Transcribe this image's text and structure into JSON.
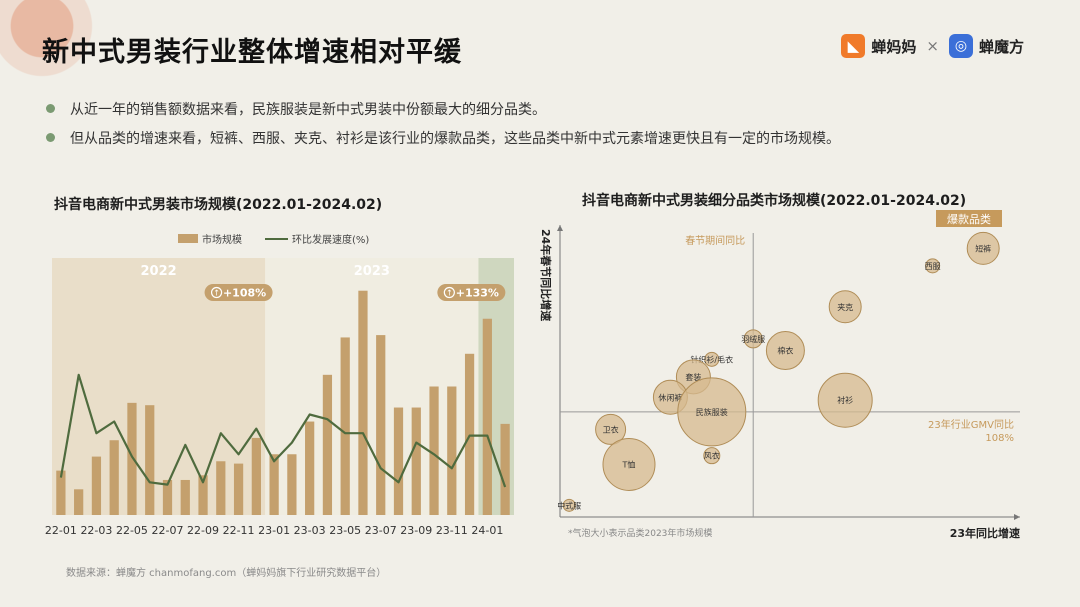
{
  "title": "新中式男装行业整体增速相对平缓",
  "brand": {
    "name1": "蝉妈妈",
    "times": "×",
    "name2": "蝉魔方"
  },
  "bullets": [
    "从近一年的销售额数据来看，民族服装是新中式男装中份额最大的细分品类。",
    "但从品类的增速来看，短裤、西服、夹克、衬衫是该行业的爆款品类，这些品类中新中式元素增速更快且有一定的市场规模。"
  ],
  "source": "数据来源：蝉魔方 chanmofang.com（蝉妈妈旗下行业研究数据平台）",
  "colors": {
    "bar": "#c4a06d",
    "line": "#4f6b3e",
    "bubble": "#d5b98f",
    "bubble_stroke": "#b08d57",
    "accent": "#c69a5c",
    "band2022": "#e7dbc3",
    "band2023": "#f0ece0",
    "band2024": "#c9d2b7"
  },
  "chart_data": [
    {
      "type": "bar+line",
      "title": "抖音电商新中式男装市场规模(2022.01-2024.02)",
      "legend": {
        "bar": "市场规模",
        "line": "环比发展速度(%)"
      },
      "years": [
        "2022",
        "2023"
      ],
      "badges": [
        "+108%",
        "+133%"
      ],
      "months": [
        "22-01",
        "22-02",
        "22-03",
        "22-04",
        "22-05",
        "22-06",
        "22-07",
        "22-08",
        "22-09",
        "22-10",
        "22-11",
        "22-12",
        "23-01",
        "23-02",
        "23-03",
        "23-04",
        "23-05",
        "23-06",
        "23-07",
        "23-08",
        "23-09",
        "23-10",
        "23-11",
        "23-12",
        "24-01",
        "24-02"
      ],
      "tick_labels": [
        "22-01",
        "22-03",
        "22-05",
        "22-07",
        "22-09",
        "22-11",
        "23-01",
        "23-03",
        "23-05",
        "23-07",
        "23-09",
        "23-11",
        "24-01"
      ],
      "bar_values": [
        19,
        11,
        25,
        32,
        48,
        47,
        15,
        15,
        17,
        23,
        22,
        33,
        26,
        26,
        40,
        60,
        76,
        96,
        77,
        46,
        46,
        55,
        55,
        69,
        84,
        39
      ],
      "line_values": [
        16,
        60,
        35,
        40,
        25,
        14,
        13,
        30,
        14,
        35,
        26,
        37,
        23,
        31,
        43,
        41,
        35,
        35,
        20,
        14,
        31,
        26,
        20,
        34,
        34,
        12
      ],
      "ylim": [
        0,
        110
      ],
      "line_ylim": [
        0,
        110
      ]
    },
    {
      "type": "scatter",
      "title": "抖音电商新中式男装细分品类市场规模(2022.01-2024.02)",
      "xlabel": "23年同比增速",
      "ylabel": "24年春节同比增速",
      "ref_v_label": "春节期间同比",
      "ref_h_label": "23年行业GMV同比",
      "ref_h_value": "108%",
      "tag": "爆款品类",
      "note": "*气泡大小表示品类2023年市场规模",
      "xlim": [
        0,
        100
      ],
      "ylim": [
        0,
        100
      ],
      "ref_x": 42,
      "ref_y": 36,
      "points": [
        {
          "label": "短裤",
          "x": 92,
          "y": 92,
          "size": 16
        },
        {
          "label": "西服",
          "x": 81,
          "y": 86,
          "size": 7
        },
        {
          "label": "夹克",
          "x": 62,
          "y": 72,
          "size": 16
        },
        {
          "label": "羽绒服",
          "x": 42,
          "y": 61,
          "size": 9
        },
        {
          "label": "棉衣",
          "x": 49,
          "y": 57,
          "size": 19
        },
        {
          "label": "针织衫/毛衣",
          "x": 33,
          "y": 54,
          "size": 7
        },
        {
          "label": "套装",
          "x": 29,
          "y": 48,
          "size": 17
        },
        {
          "label": "休闲裤",
          "x": 24,
          "y": 41,
          "size": 17
        },
        {
          "label": "民族服装",
          "x": 33,
          "y": 36,
          "size": 34
        },
        {
          "label": "衬衫",
          "x": 62,
          "y": 40,
          "size": 27
        },
        {
          "label": "卫衣",
          "x": 11,
          "y": 30,
          "size": 15
        },
        {
          "label": "T恤",
          "x": 15,
          "y": 18,
          "size": 26
        },
        {
          "label": "风衣",
          "x": 33,
          "y": 21,
          "size": 8
        },
        {
          "label": "中式服",
          "x": 2,
          "y": 4,
          "size": 6
        }
      ]
    }
  ]
}
